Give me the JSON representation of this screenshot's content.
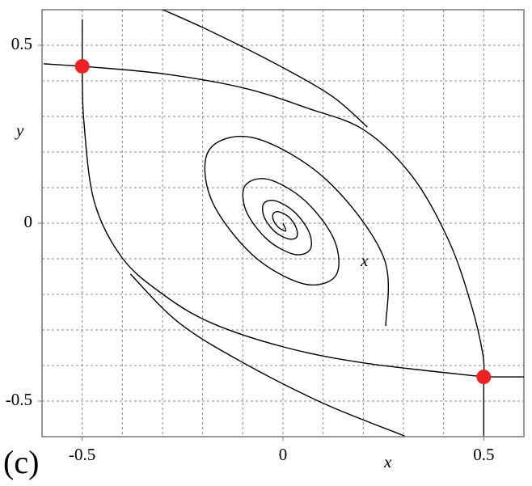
{
  "chart_data": {
    "type": "line",
    "smooth": true,
    "grid": true,
    "xlabel": "x",
    "ylabel": "y",
    "annotations": [
      {
        "text": "(c)",
        "x": -0.6,
        "y": -0.6
      },
      {
        "text": "x",
        "x": 0.203,
        "y": -0.109
      }
    ],
    "xlim": [
      -0.6,
      0.6
    ],
    "ylim": [
      -0.6,
      0.6
    ],
    "xticks": [
      -0.5,
      0,
      0.5
    ],
    "yticks": [
      -0.5,
      0,
      0.5
    ],
    "xgrid": [
      -0.5,
      -0.4,
      -0.3,
      -0.2,
      -0.1,
      0,
      0.1,
      0.2,
      0.3,
      0.4,
      0.5
    ],
    "ygrid": [
      -0.5,
      -0.4,
      -0.3,
      -0.2,
      -0.1,
      0,
      0.1,
      0.2,
      0.3,
      0.4,
      0.5
    ],
    "series": [
      {
        "type": "line",
        "color": "#000000",
        "x": [
          -0.5,
          -0.299,
          -0.098,
          0.062,
          0.203,
          0.323,
          0.414,
          0.47,
          0.498,
          0.5
        ],
        "values": [
          0.441,
          0.42,
          0.38,
          0.323,
          0.261,
          0.13,
          -0.052,
          -0.234,
          -0.37,
          -0.432
        ]
      },
      {
        "type": "line",
        "color": "#000000",
        "x": [
          -0.299,
          -0.179,
          -0.018,
          0.122,
          0.21
        ],
        "values": [
          0.6,
          0.539,
          0.448,
          0.357,
          0.27
        ]
      },
      {
        "type": "line",
        "color": "#000000",
        "x": [
          -0.5,
          -0.496,
          -0.47,
          -0.4,
          -0.299,
          -0.179,
          0.002,
          0.203,
          0.5
        ],
        "values": [
          0.441,
          0.289,
          0.061,
          -0.098,
          -0.2,
          -0.28,
          -0.348,
          -0.393,
          -0.432
        ]
      },
      {
        "type": "line",
        "color": "#000000",
        "x": [
          0.303,
          0.102,
          -0.098,
          -0.259,
          -0.38
        ],
        "values": [
          -0.598,
          -0.507,
          -0.393,
          -0.28,
          -0.143
        ]
      },
      {
        "type": "line",
        "color": "#000000",
        "x": [
          -0.596,
          -0.5
        ],
        "values": [
          0.448,
          0.441
        ]
      },
      {
        "type": "line",
        "color": "#000000",
        "x": [
          -0.5,
          -0.5
        ],
        "values": [
          0.441,
          0.573
        ]
      },
      {
        "type": "line",
        "color": "#000000",
        "x": [
          0.6,
          0.5
        ],
        "values": [
          -0.432,
          -0.432
        ]
      },
      {
        "type": "line",
        "color": "#000000",
        "x": [
          0.5,
          0.5
        ],
        "values": [
          -0.432,
          -0.598
        ]
      },
      {
        "type": "line",
        "color": "#000000",
        "x": [
          0.256,
          0.25,
          0.108,
          -0.07,
          -0.183,
          -0.179,
          -0.077,
          0.05,
          0.131,
          0.128,
          0.055,
          -0.036,
          -0.094,
          -0.092,
          -0.04,
          0.026,
          0.067,
          0.065,
          0.028,
          -0.019,
          -0.048,
          -0.047,
          -0.021,
          0.013,
          0.034,
          0.033,
          0.015,
          -0.01,
          -0.024,
          -0.024,
          -0.011,
          0.007,
          0
        ],
        "values": [
          -0.289,
          -0.094,
          0.122,
          0.239,
          0.207,
          0.068,
          -0.088,
          -0.17,
          -0.148,
          -0.048,
          0.063,
          0.123,
          0.106,
          0.035,
          -0.045,
          -0.087,
          -0.075,
          -0.025,
          0.032,
          0.063,
          0.055,
          0.018,
          -0.023,
          -0.044,
          -0.039,
          -0.013,
          0.017,
          0.032,
          0.027,
          0.009,
          -0.012,
          -0.022,
          0
        ]
      },
      {
        "type": "scatter",
        "color": "#ee2222",
        "x": [
          -0.5,
          0.5
        ],
        "values": [
          0.441,
          -0.432
        ]
      }
    ]
  }
}
